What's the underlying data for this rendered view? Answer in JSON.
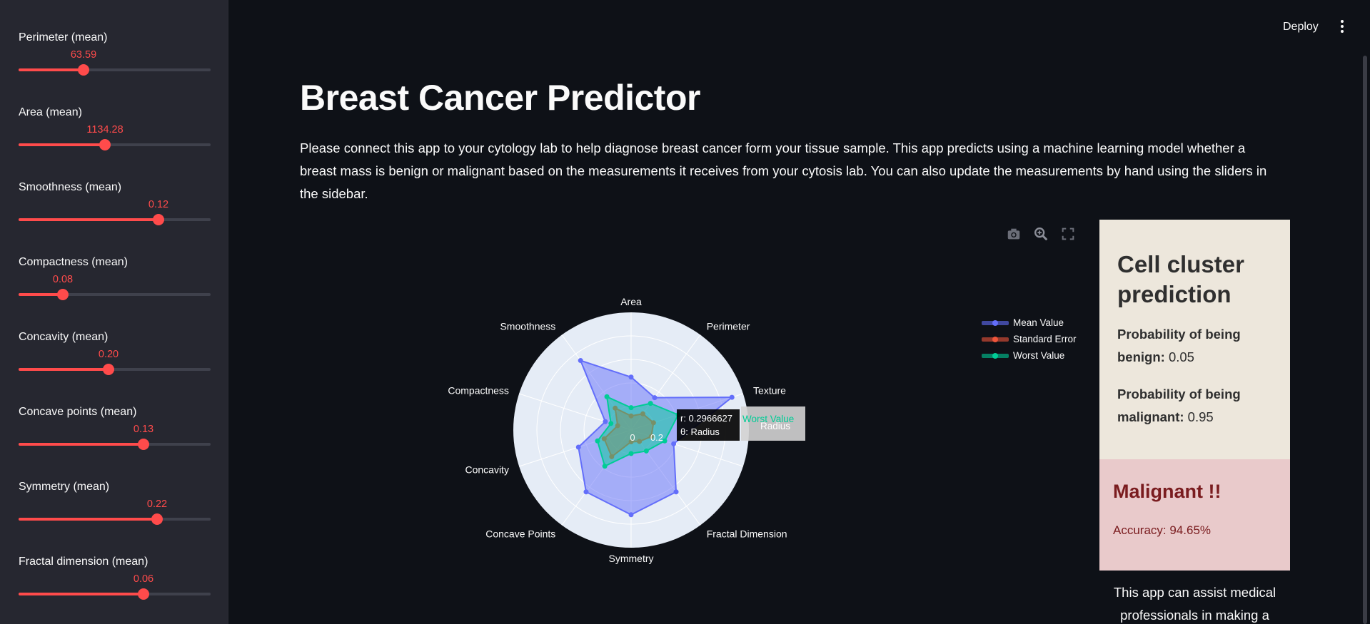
{
  "sidebar": {
    "sliders": [
      {
        "label": "Perimeter (mean)",
        "value": "63.59",
        "fraction": 0.34
      },
      {
        "label": "Area (mean)",
        "value": "1134.28",
        "fraction": 0.45
      },
      {
        "label": "Smoothness (mean)",
        "value": "0.12",
        "fraction": 0.73
      },
      {
        "label": "Compactness (mean)",
        "value": "0.08",
        "fraction": 0.23
      },
      {
        "label": "Concavity (mean)",
        "value": "0.20",
        "fraction": 0.47
      },
      {
        "label": "Concave points (mean)",
        "value": "0.13",
        "fraction": 0.65
      },
      {
        "label": "Symmetry (mean)",
        "value": "0.22",
        "fraction": 0.72
      },
      {
        "label": "Fractal dimension (mean)",
        "value": "0.06",
        "fraction": 0.65
      }
    ]
  },
  "header": {
    "deploy_label": "Deploy",
    "menu_icon": "kebab-menu-icon"
  },
  "main": {
    "title": "Breast Cancer Predictor",
    "description": "Please connect this app to your cytology lab to help diagnose breast cancer form your tissue sample. This app predicts using a machine learning model whether a breast mass is benign or malignant based on the measurements it receives from your cytosis lab. You can also update the measurements by hand using the sliders in the sidebar."
  },
  "chart_toolbar": {
    "icons": [
      "camera-icon",
      "zoom-icon",
      "autoscale-icon"
    ]
  },
  "chart_data": {
    "type": "radar",
    "categories": [
      "Radius",
      "Texture",
      "Perimeter",
      "Area",
      "Smoothness",
      "Compactness",
      "Concavity",
      "Concave Points",
      "Symmetry",
      "Fractal Dimension"
    ],
    "radial_ticks": [
      "0",
      "0.2"
    ],
    "series": [
      {
        "name": "Mean Value",
        "color": "#636efa",
        "values": [
          0.38,
          0.9,
          0.34,
          0.45,
          0.73,
          0.23,
          0.47,
          0.65,
          0.72,
          0.65
        ]
      },
      {
        "name": "Standard Error",
        "color": "#ef553b",
        "values": [
          0.18,
          0.2,
          0.17,
          0.12,
          0.23,
          0.12,
          0.24,
          0.28,
          0.1,
          0.12
        ]
      },
      {
        "name": "Worst Value",
        "color": "#00cc96",
        "values": [
          0.3,
          0.42,
          0.28,
          0.19,
          0.35,
          0.18,
          0.3,
          0.38,
          0.2,
          0.22
        ]
      }
    ],
    "tooltip": {
      "r_text": "r: 0.2966627",
      "theta_text": "θ: Radius",
      "series_name": "Worst Value",
      "axis_label": "Radius"
    },
    "legend_position": "right",
    "grid": true
  },
  "prediction": {
    "title": "Cell cluster prediction",
    "benign_label": "Probability of being benign:",
    "benign_value": "0.05",
    "malignant_label": "Probability of being malignant:",
    "malignant_value": "0.95",
    "result": "Malignant !!",
    "accuracy": "Accuracy: 94.65%",
    "assist_text": "This app can assist medical professionals in making a"
  },
  "colors": {
    "accent": "#ff4b4b",
    "background": "#0e1117",
    "sidebar": "#262730"
  }
}
